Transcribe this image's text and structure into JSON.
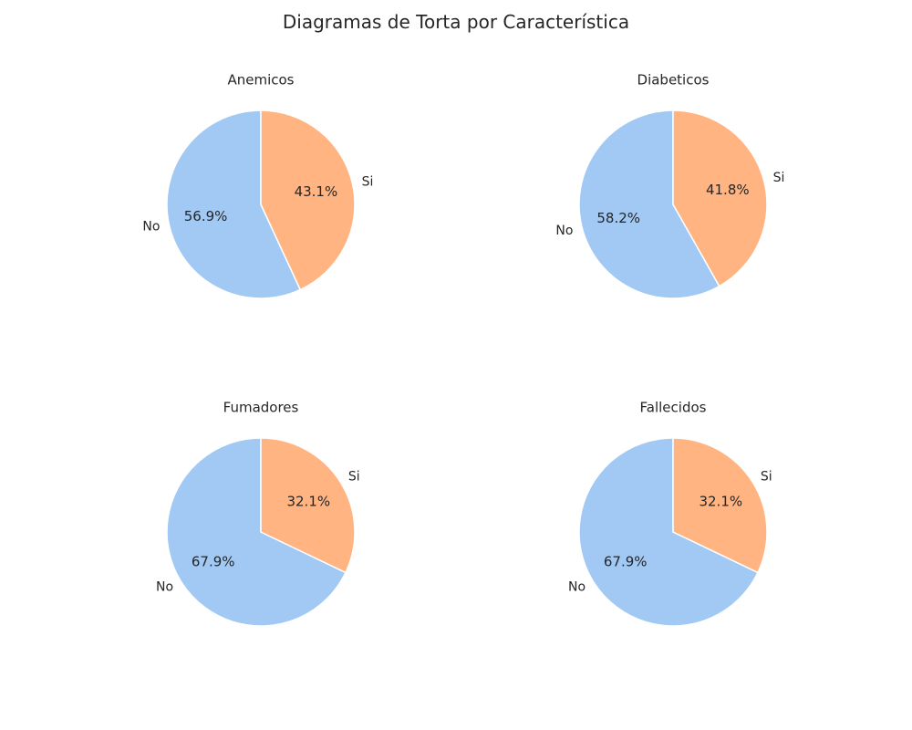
{
  "figure": {
    "title": "Diagramas de Torta por Característica"
  },
  "colors": {
    "no": "#a1c9f4",
    "si": "#ffb482",
    "edge": "#ffffff"
  },
  "chart_data": [
    {
      "type": "pie",
      "title": "Anemicos",
      "labels": [
        "No",
        "Si"
      ],
      "values": [
        56.9,
        43.1
      ],
      "percent_labels": [
        "56.9%",
        "43.1%"
      ],
      "start_angle_deg": 90,
      "direction": "counterclockwise"
    },
    {
      "type": "pie",
      "title": "Diabeticos",
      "labels": [
        "No",
        "Si"
      ],
      "values": [
        58.2,
        41.8
      ],
      "percent_labels": [
        "58.2%",
        "41.8%"
      ],
      "start_angle_deg": 90,
      "direction": "counterclockwise"
    },
    {
      "type": "pie",
      "title": "Fumadores",
      "labels": [
        "No",
        "Si"
      ],
      "values": [
        67.9,
        32.1
      ],
      "percent_labels": [
        "67.9%",
        "32.1%"
      ],
      "start_angle_deg": 90,
      "direction": "counterclockwise"
    },
    {
      "type": "pie",
      "title": "Fallecidos",
      "labels": [
        "No",
        "Si"
      ],
      "values": [
        67.9,
        32.1
      ],
      "percent_labels": [
        "67.9%",
        "32.1%"
      ],
      "start_angle_deg": 90,
      "direction": "counterclockwise"
    }
  ]
}
